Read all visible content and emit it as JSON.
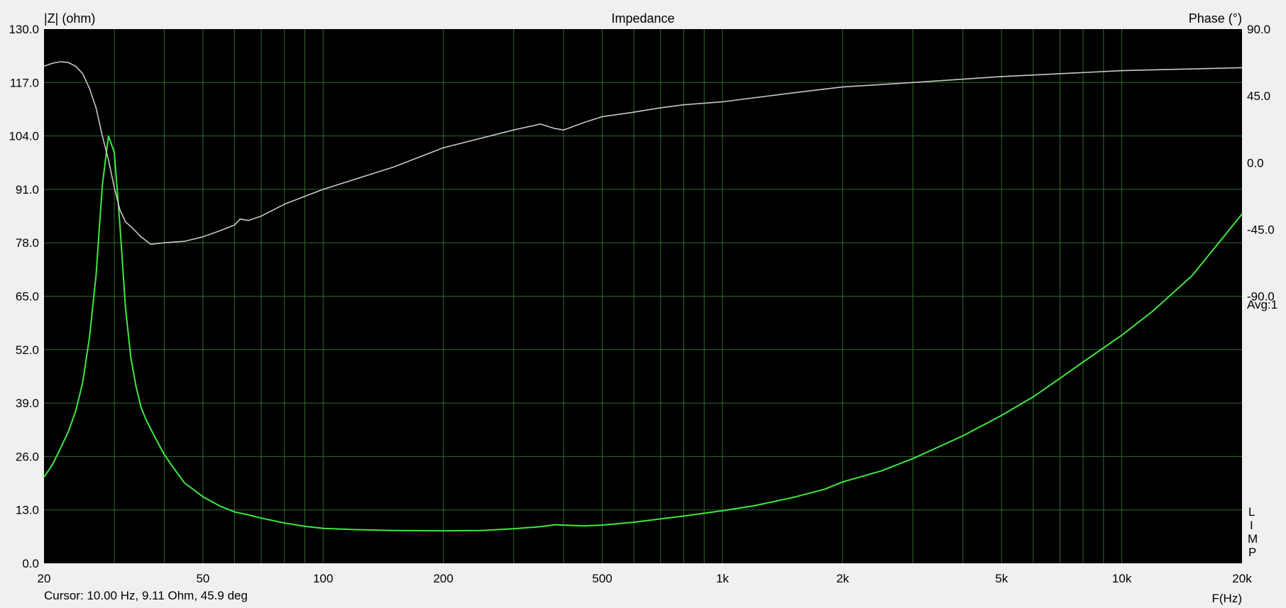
{
  "chart_data": {
    "type": "line",
    "title": "Impedance",
    "ylabel_left": "|Z| (ohm)",
    "ylabel_right": "Phase (°)",
    "xlabel": "F(Hz)",
    "x_scale": "log",
    "xlim": [
      20,
      20000
    ],
    "ylim_left": [
      0,
      130
    ],
    "ylim_right": [
      -270,
      90
    ],
    "x_ticks": [
      {
        "value": 20,
        "label": "20"
      },
      {
        "value": 50,
        "label": "50"
      },
      {
        "value": 100,
        "label": "100"
      },
      {
        "value": 200,
        "label": "200"
      },
      {
        "value": 500,
        "label": "500"
      },
      {
        "value": 1000,
        "label": "1k"
      },
      {
        "value": 2000,
        "label": "2k"
      },
      {
        "value": 5000,
        "label": "5k"
      },
      {
        "value": 10000,
        "label": "10k"
      },
      {
        "value": 20000,
        "label": "20k"
      }
    ],
    "x_minor_gridlines": [
      30,
      40,
      60,
      70,
      80,
      90,
      300,
      400,
      600,
      700,
      800,
      900,
      3000,
      4000,
      6000,
      7000,
      8000,
      9000
    ],
    "y_left_ticks": [
      "0.0",
      "13.0",
      "26.0",
      "39.0",
      "52.0",
      "65.0",
      "78.0",
      "91.0",
      "104.0",
      "117.0",
      "130.0"
    ],
    "y_right_ticks": [
      "90.0",
      "45.0",
      "0.0",
      "-45.0",
      "-90.0"
    ],
    "grid": true,
    "background": "#000000",
    "series": [
      {
        "axis": "left",
        "color": "#3ee83e",
        "x": [
          20,
          21,
          22,
          23,
          24,
          25,
          26,
          27,
          28,
          29,
          30,
          31,
          32,
          33,
          34,
          35,
          36,
          38,
          40,
          42,
          45,
          48,
          50,
          55,
          60,
          65,
          70,
          80,
          90,
          100,
          120,
          150,
          200,
          250,
          300,
          350,
          380,
          400,
          450,
          500,
          600,
          700,
          800,
          1000,
          1200,
          1500,
          1800,
          2000,
          2500,
          3000,
          4000,
          5000,
          6000,
          7000,
          8000,
          10000,
          12000,
          15000,
          20000
        ],
        "values": [
          21,
          24,
          28,
          32,
          37,
          44,
          55,
          70,
          92,
          104,
          100,
          82,
          62,
          50,
          43,
          38,
          35,
          30.5,
          26.5,
          23.5,
          19.5,
          17.5,
          16.2,
          14,
          12.5,
          11.8,
          11,
          9.8,
          9,
          8.5,
          8.2,
          8,
          7.9,
          8,
          8.4,
          8.9,
          9.4,
          9.3,
          9.1,
          9.3,
          10,
          10.8,
          11.5,
          12.8,
          14,
          16,
          18,
          19.8,
          22.5,
          25.5,
          31,
          36,
          40.5,
          45,
          49,
          55.5,
          61.5,
          70,
          85
        ]
      },
      {
        "axis": "right",
        "color": "#c8c8c8",
        "x": [
          20,
          21,
          22,
          23,
          24,
          25,
          26,
          27,
          28,
          29,
          30,
          31,
          32,
          33,
          35,
          37,
          40,
          45,
          50,
          55,
          60,
          62,
          65,
          70,
          80,
          100,
          150,
          200,
          300,
          350,
          380,
          400,
          450,
          500,
          600,
          700,
          800,
          1000,
          1500,
          2000,
          3000,
          5000,
          10000,
          20000
        ],
        "values": [
          65,
          67,
          68,
          67.5,
          65,
          60,
          50,
          37,
          18,
          2,
          -17,
          -32,
          -40,
          -43,
          -50,
          -55,
          -54,
          -53,
          -50,
          -46,
          -42,
          -38,
          -39,
          -36,
          -28,
          -18,
          -3,
          10,
          22,
          26,
          23,
          22,
          27,
          31,
          34,
          37,
          39,
          41,
          47,
          51,
          54,
          58,
          62,
          64
        ]
      }
    ],
    "annotations": [
      "Avg:1",
      "L",
      "I",
      "M",
      "P"
    ],
    "status": "Cursor: 10.00 Hz, 9.11 Ohm, 45.9 deg"
  }
}
